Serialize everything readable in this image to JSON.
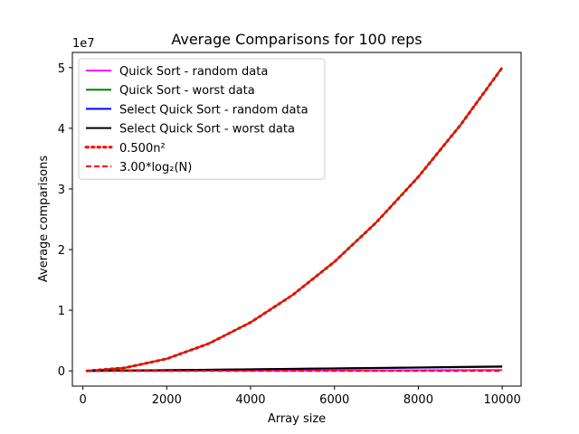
{
  "chart_data": {
    "type": "line",
    "title": "Average Comparisons for 100 reps",
    "xlabel": "Array size",
    "ylabel": "Average comparisons",
    "y_offset_label": "1e7",
    "xlim": [
      -250,
      10450
    ],
    "ylim": [
      -2500000,
      52500000
    ],
    "x_ticks": [
      0,
      2000,
      4000,
      6000,
      8000,
      10000
    ],
    "x_tick_labels": [
      "0",
      "2000",
      "4000",
      "6000",
      "8000",
      "10000"
    ],
    "y_ticks": [
      0,
      10000000,
      20000000,
      30000000,
      40000000,
      50000000
    ],
    "y_tick_labels": [
      "0",
      "1",
      "2",
      "3",
      "4",
      "5"
    ],
    "grid": false,
    "legend_position": "top-left",
    "x": [
      100,
      1000,
      2000,
      3000,
      4000,
      5000,
      6000,
      7000,
      8000,
      9000,
      10000
    ],
    "series": [
      {
        "name": "Quick Sort - random data",
        "color": "#ff00ff",
        "style": "solid",
        "values": [
          700,
          11000,
          24000,
          38000,
          52000,
          67000,
          82000,
          97000,
          112000,
          128000,
          144000
        ]
      },
      {
        "name": "Quick Sort - worst data",
        "color": "#008000",
        "style": "solid",
        "values": [
          5000,
          500000,
          2000000,
          4500000,
          8000000,
          12500000,
          18000000,
          24500000,
          32000000,
          40500000,
          50000000
        ]
      },
      {
        "name": "Select Quick Sort - random data",
        "color": "#0000ff",
        "style": "solid",
        "values": [
          1500,
          60000,
          125000,
          190000,
          260000,
          330000,
          400000,
          470000,
          540000,
          610000,
          680000
        ]
      },
      {
        "name": "Select Quick Sort - worst data",
        "color": "#000000",
        "style": "solid",
        "values": [
          1600,
          65000,
          135000,
          205000,
          280000,
          355000,
          430000,
          505000,
          580000,
          660000,
          740000
        ]
      },
      {
        "name": "0.500n²",
        "color": "#ff0000",
        "style": "dotted",
        "values": [
          5000,
          500000,
          2000000,
          4500000,
          8000000,
          12500000,
          18000000,
          24500000,
          32000000,
          40500000,
          50000000
        ]
      },
      {
        "name": "3.00*log₂(N)",
        "color": "#ff0000",
        "style": "dashed",
        "values": [
          20,
          30,
          33,
          35,
          36,
          37,
          38,
          38,
          39,
          39,
          40
        ]
      }
    ]
  }
}
